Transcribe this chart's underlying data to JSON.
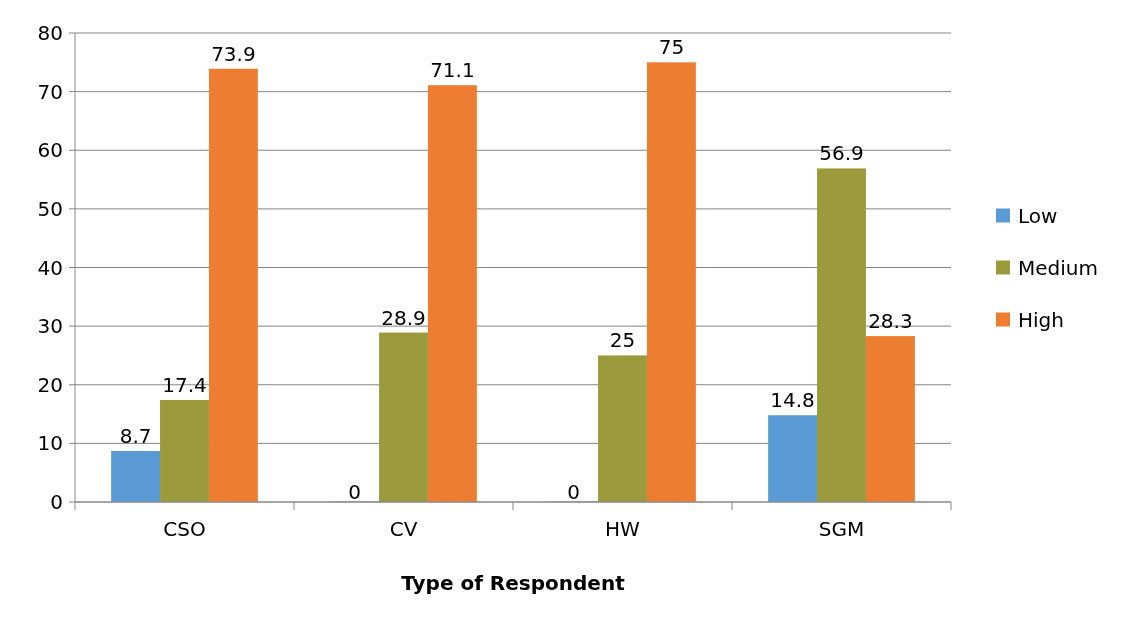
{
  "chart_data": {
    "type": "bar",
    "xlabel": "Type of Respondent",
    "categories": [
      "CSO",
      "CV",
      "HW",
      "SGM"
    ],
    "series": [
      {
        "name": "Low",
        "color": "#5b9bd5",
        "values": [
          8.7,
          0,
          0,
          14.8
        ]
      },
      {
        "name": "Medium",
        "color": "#9b9b3d",
        "values": [
          17.4,
          28.9,
          25,
          56.9
        ]
      },
      {
        "name": "High",
        "color": "#ed7d31",
        "values": [
          73.9,
          71.1,
          75,
          28.3
        ]
      }
    ],
    "ylim": [
      0,
      80
    ],
    "yticks": [
      0,
      10,
      20,
      30,
      40,
      50,
      60,
      70,
      80
    ],
    "grid": "y",
    "legend": "right",
    "data_labels": true
  }
}
